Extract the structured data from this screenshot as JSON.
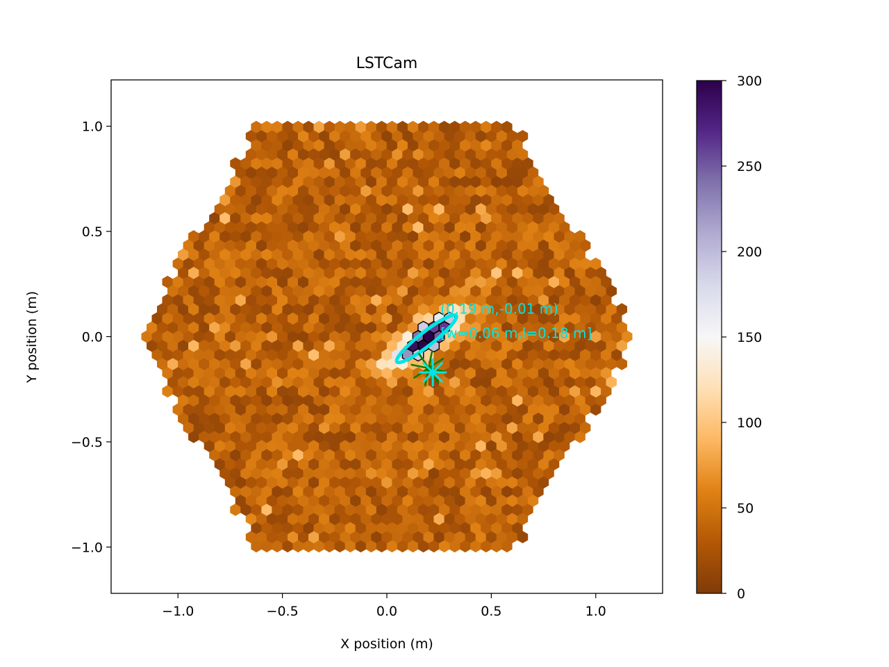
{
  "chart_data": {
    "type": "heatmap",
    "title": "LSTCam",
    "xlabel": "X position (m)",
    "ylabel": "Y position (m)",
    "xlim": [
      -1.32,
      1.32
    ],
    "ylim": [
      -1.22,
      1.22
    ],
    "x_ticks": [
      -1.0,
      -0.5,
      0.0,
      0.5,
      1.0
    ],
    "x_tick_labels": [
      "−1.0",
      "−0.5",
      "0.0",
      "0.5",
      "1.0"
    ],
    "y_ticks": [
      -1.0,
      -0.5,
      0.0,
      0.5,
      1.0
    ],
    "y_tick_labels": [
      "−1.0",
      "−0.5",
      "0.0",
      "0.5",
      "1.0"
    ],
    "grid": false,
    "camera": {
      "shape": "hexagonal pixels in a hexagonal camera",
      "pixel_spacing": 0.05,
      "hex_radius": 1.2,
      "background_level": [
        10,
        60
      ]
    },
    "hillas": {
      "centroid": [
        0.19,
        -0.01
      ],
      "width": 0.06,
      "length": 0.18,
      "psi_deg": 38,
      "ellipse_color": "#00e5e5",
      "centroid_label": "(0.19 m,-0.01 m)",
      "size_label": "[w=0.06 m,l=0.18 m]"
    },
    "shower_peak_value": 300,
    "markers": [
      {
        "type": "star",
        "x": 0.2,
        "y": -0.15,
        "color": "#008000"
      },
      {
        "type": "star",
        "x": 0.22,
        "y": -0.17,
        "color": "#00e5e5"
      }
    ],
    "colorbar": {
      "colormap": "PuOr",
      "range": [
        0,
        300
      ],
      "ticks": [
        0,
        50,
        100,
        150,
        200,
        250,
        300
      ],
      "tick_labels": [
        "0",
        "50",
        "100",
        "150",
        "200",
        "250",
        "300"
      ]
    }
  }
}
